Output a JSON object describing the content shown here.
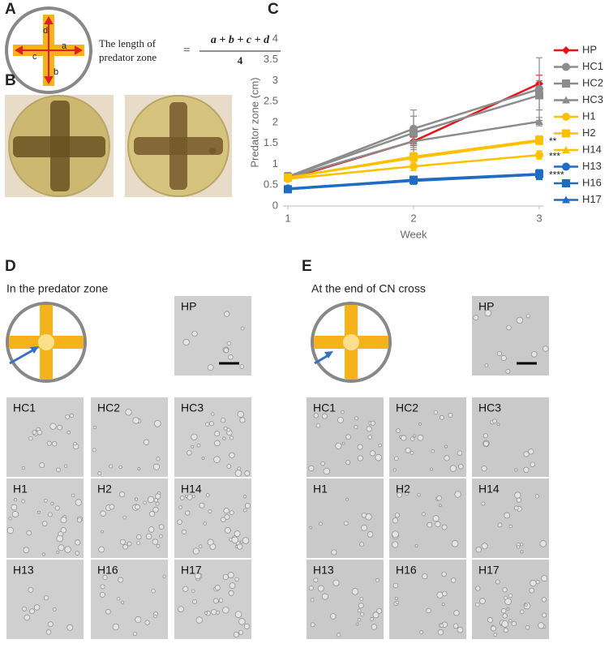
{
  "panels": {
    "A": {
      "label": "A",
      "formula_label": [
        "The length of",
        "predator zone"
      ],
      "equals": "=",
      "numerator": "a + b + c + d",
      "denominator": "4",
      "arm_labels": [
        "a",
        "b",
        "c",
        "d"
      ]
    },
    "B": {
      "label": "B"
    },
    "C": {
      "label": "C"
    },
    "D": {
      "label": "D",
      "caption": "In the predator zone",
      "tiles": [
        "HP",
        "HC1",
        "HC2",
        "HC3",
        "H1",
        "H2",
        "H14",
        "H13",
        "H16",
        "H17"
      ]
    },
    "E": {
      "label": "E",
      "caption": "At the end of CN cross",
      "tiles": [
        "HP",
        "HC1",
        "HC2",
        "HC3",
        "H1",
        "H2",
        "H14",
        "H13",
        "H16",
        "H17"
      ]
    }
  },
  "chart_data": {
    "type": "line",
    "x_label": "Week",
    "y_label": "Predator zone (cm)",
    "x": [
      1,
      2,
      3
    ],
    "xlim": [
      1,
      3
    ],
    "xticks": [
      1,
      2,
      3
    ],
    "ylim": [
      0,
      4
    ],
    "yticks": [
      0,
      0.5,
      1,
      1.5,
      2,
      2.5,
      3,
      3.5,
      4
    ],
    "legend": "right",
    "series": [
      {
        "name": "HP",
        "color": "#e8141b",
        "marker": "diamond",
        "values": [
          0.65,
          1.55,
          2.93
        ],
        "errors": [
          0.05,
          0.1,
          0.2
        ]
      },
      {
        "name": "HC1",
        "color": "#8c8c8c",
        "marker": "circle",
        "values": [
          0.7,
          1.85,
          2.8
        ],
        "errors": [
          0.1,
          0.45,
          0.75
        ]
      },
      {
        "name": "HC2",
        "color": "#8c8c8c",
        "marker": "square",
        "values": [
          0.7,
          1.75,
          2.65
        ],
        "errors": [
          0.1,
          0.4,
          0.35
        ]
      },
      {
        "name": "HC3",
        "color": "#8c8c8c",
        "marker": "triangle",
        "values": [
          0.68,
          1.55,
          2.02
        ],
        "errors": [
          0.05,
          0.3,
          0.1
        ]
      },
      {
        "name": "H1",
        "color": "#ffc000",
        "marker": "circle",
        "values": [
          0.65,
          0.95,
          1.22
        ],
        "errors": [
          0.05,
          0.1,
          0.1
        ],
        "annotation": "***"
      },
      {
        "name": "H2",
        "color": "#ffc000",
        "marker": "square",
        "values": [
          0.68,
          1.18,
          1.58
        ],
        "errors": [
          0.05,
          0.1,
          0.1
        ],
        "annotation": "**"
      },
      {
        "name": "H14",
        "color": "#ffc000",
        "marker": "triangle",
        "values": [
          0.68,
          1.15,
          1.55
        ],
        "errors": [
          0.05,
          0.1,
          0.08
        ]
      },
      {
        "name": "H13",
        "color": "#1f6cc0",
        "marker": "circle",
        "values": [
          0.42,
          0.62,
          0.75
        ],
        "errors": [
          0.05,
          0.05,
          0.12
        ]
      },
      {
        "name": "H16",
        "color": "#1f6cc0",
        "marker": "square",
        "values": [
          0.4,
          0.63,
          0.77
        ],
        "errors": [
          0.05,
          0.05,
          0.1
        ],
        "annotation": "****"
      },
      {
        "name": "H17",
        "color": "#1f6cc0",
        "marker": "triangle",
        "values": [
          0.4,
          0.6,
          0.75
        ],
        "errors": [
          0.05,
          0.08,
          0.1
        ]
      }
    ]
  }
}
